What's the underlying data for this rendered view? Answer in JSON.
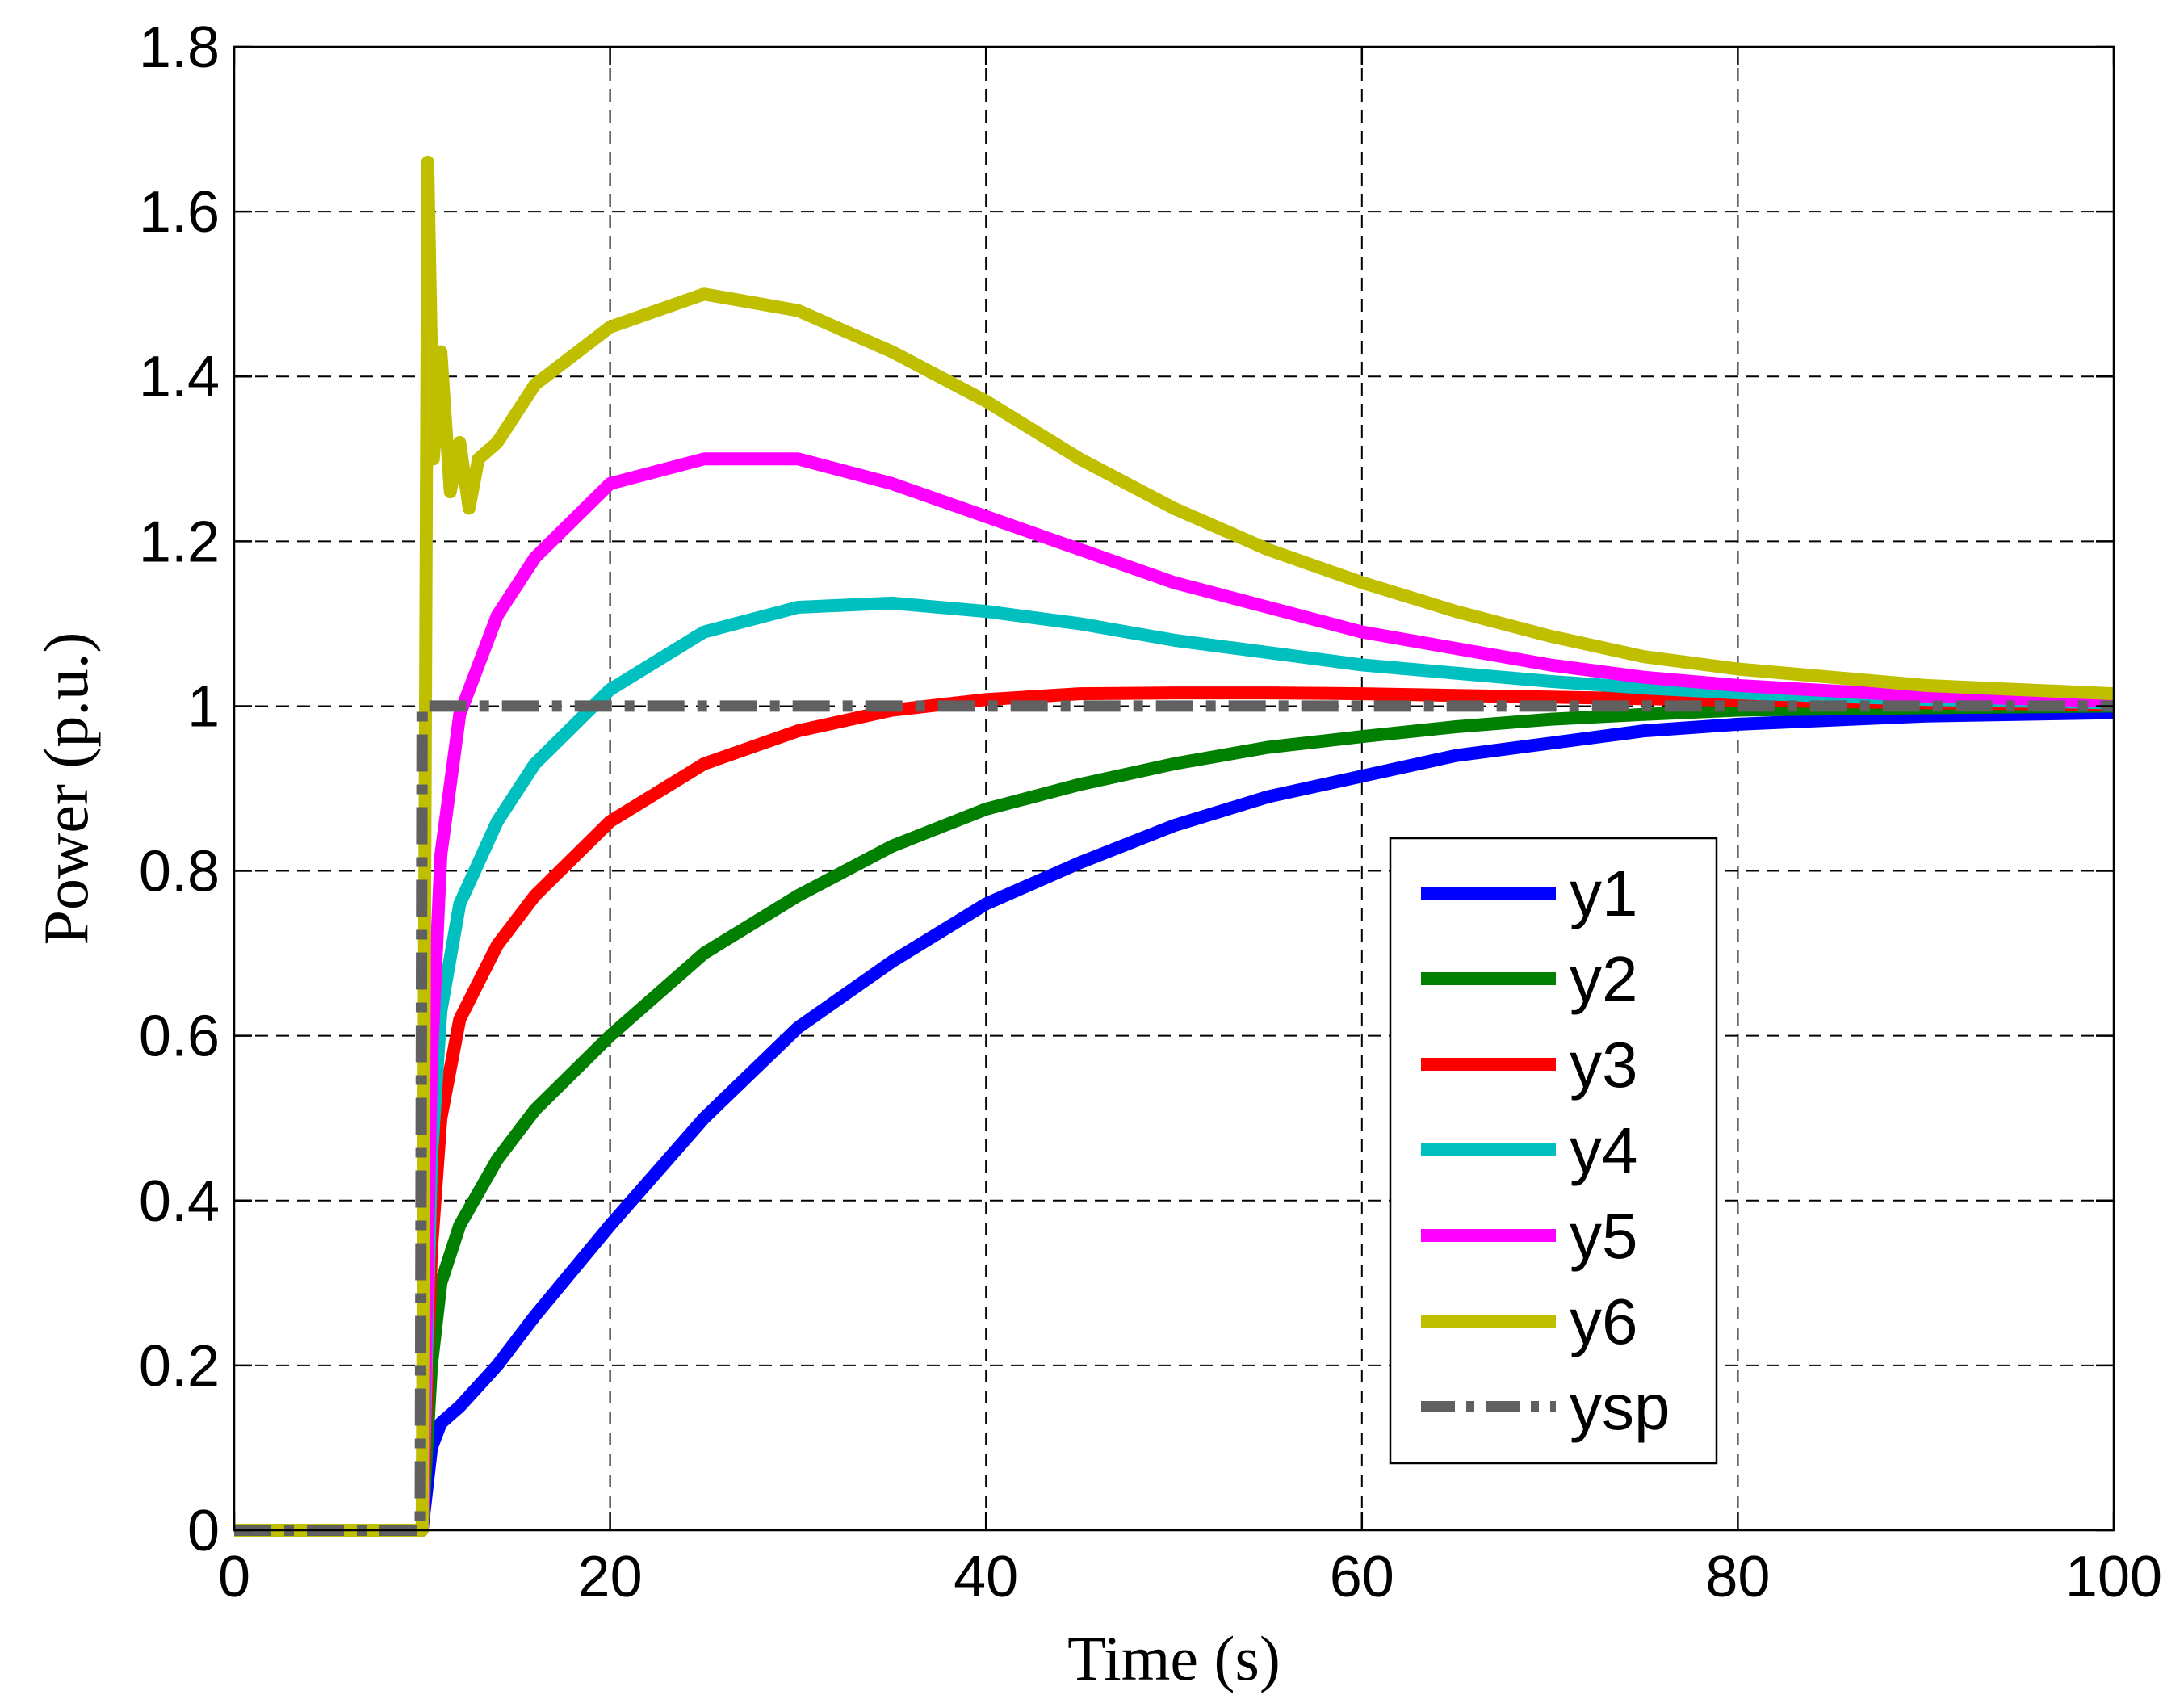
{
  "chart_data": {
    "type": "line",
    "title": "",
    "xlabel": "Time (s)",
    "ylabel": "Power (p.u.)",
    "xlim": [
      0,
      100
    ],
    "ylim": [
      0,
      1.8
    ],
    "xticks": [
      0,
      20,
      40,
      60,
      80,
      100
    ],
    "xtick_labels": [
      "0",
      "20",
      "40",
      "60",
      "80",
      "100"
    ],
    "yticks": [
      0,
      0.2,
      0.4,
      0.6,
      0.8,
      1,
      1.2,
      1.4,
      1.6,
      1.8
    ],
    "ytick_labels": [
      "0",
      "0.2",
      "0.4",
      "0.6",
      "0.8",
      "1",
      "1.2",
      "1.4",
      "1.6",
      "1.8"
    ],
    "grid": true,
    "legend_position": "lower-right",
    "series": [
      {
        "name": "y1",
        "color": "#0000ff",
        "style": "solid",
        "x": [
          0,
          10,
          10.5,
          11,
          12,
          14,
          16,
          20,
          25,
          30,
          35,
          40,
          45,
          50,
          55,
          60,
          65,
          70,
          75,
          80,
          90,
          100
        ],
        "y": [
          0,
          0,
          0.1,
          0.13,
          0.15,
          0.2,
          0.26,
          0.37,
          0.5,
          0.61,
          0.69,
          0.76,
          0.81,
          0.855,
          0.89,
          0.915,
          0.94,
          0.955,
          0.97,
          0.978,
          0.988,
          0.992
        ]
      },
      {
        "name": "y2",
        "color": "#007f00",
        "style": "solid",
        "x": [
          0,
          10,
          10.5,
          11,
          12,
          14,
          16,
          20,
          25,
          30,
          35,
          40,
          45,
          50,
          55,
          60,
          65,
          70,
          75,
          80,
          90,
          100
        ],
        "y": [
          0,
          0,
          0.2,
          0.3,
          0.37,
          0.45,
          0.51,
          0.6,
          0.7,
          0.77,
          0.83,
          0.875,
          0.905,
          0.93,
          0.95,
          0.963,
          0.975,
          0.984,
          0.99,
          0.995,
          0.998,
          1.0
        ]
      },
      {
        "name": "y3",
        "color": "#ff0000",
        "style": "solid",
        "x": [
          0,
          10,
          10.5,
          11,
          12,
          14,
          16,
          20,
          25,
          30,
          35,
          40,
          45,
          50,
          55,
          60,
          65,
          70,
          75,
          80,
          90,
          100
        ],
        "y": [
          0,
          0,
          0.34,
          0.5,
          0.62,
          0.71,
          0.77,
          0.86,
          0.93,
          0.97,
          0.995,
          1.008,
          1.015,
          1.016,
          1.016,
          1.015,
          1.013,
          1.011,
          1.009,
          1.007,
          1.004,
          1.002
        ]
      },
      {
        "name": "y4",
        "color": "#00bfbf",
        "style": "solid",
        "x": [
          0,
          10,
          10.5,
          11,
          12,
          14,
          16,
          20,
          25,
          30,
          35,
          40,
          45,
          50,
          55,
          60,
          65,
          70,
          75,
          80,
          90,
          100
        ],
        "y": [
          0,
          0,
          0.45,
          0.63,
          0.76,
          0.86,
          0.93,
          1.02,
          1.09,
          1.12,
          1.125,
          1.115,
          1.1,
          1.08,
          1.065,
          1.05,
          1.04,
          1.03,
          1.022,
          1.016,
          1.008,
          1.004
        ]
      },
      {
        "name": "y5",
        "color": "#ff00ff",
        "style": "solid",
        "x": [
          0,
          10,
          10.5,
          11,
          12,
          14,
          16,
          20,
          25,
          30,
          35,
          40,
          45,
          50,
          55,
          60,
          65,
          70,
          75,
          80,
          90,
          100
        ],
        "y": [
          0,
          0,
          0.57,
          0.82,
          0.99,
          1.11,
          1.18,
          1.27,
          1.3,
          1.3,
          1.27,
          1.23,
          1.19,
          1.15,
          1.12,
          1.09,
          1.07,
          1.05,
          1.035,
          1.025,
          1.012,
          1.006
        ]
      },
      {
        "name": "y6",
        "color": "#bfbf00",
        "style": "solid",
        "x": [
          0,
          10,
          10.3,
          10.6,
          11,
          11.5,
          12,
          12.5,
          13,
          14,
          16,
          20,
          25,
          30,
          35,
          40,
          45,
          50,
          55,
          60,
          65,
          70,
          75,
          80,
          90,
          100
        ],
        "y": [
          0,
          0,
          1.66,
          1.3,
          1.43,
          1.26,
          1.32,
          1.24,
          1.3,
          1.32,
          1.39,
          1.46,
          1.5,
          1.48,
          1.43,
          1.37,
          1.3,
          1.24,
          1.19,
          1.15,
          1.115,
          1.085,
          1.06,
          1.045,
          1.025,
          1.015
        ]
      },
      {
        "name": "ysp",
        "color": "#606060",
        "style": "dashdot",
        "x": [
          0,
          9.9,
          10,
          100
        ],
        "y": [
          0,
          0,
          1,
          1
        ]
      }
    ]
  }
}
